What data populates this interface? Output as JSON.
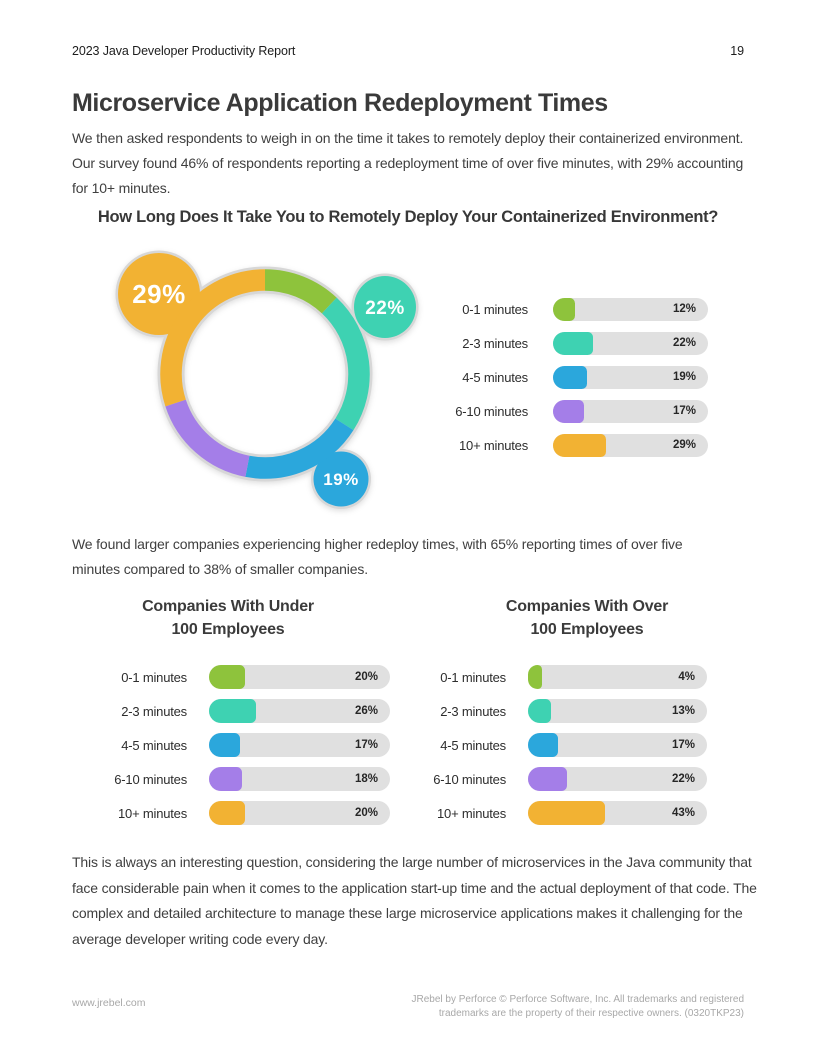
{
  "header": {
    "report_title": "2023 Java Developer Productivity Report",
    "page_number": "19"
  },
  "article": {
    "title": "Microservice Application Redeployment Times",
    "intro": "We then asked respondents to weigh in on the time it takes to remotely deploy their containerized environment. Our survey found 46% of respondents reporting a redeployment time of over five minutes, with 29% accounting for 10+ minutes.",
    "mid_note": "We found larger companies experiencing higher redeploy times, with 65% reporting times of over five minutes compared to 38% of smaller companies.",
    "closing": "This is always an interesting question, considering the large number of microservices in the Java community that face considerable pain when it comes to the application start-up time and the actual deployment of that code. The complex and detailed architecture to manage these large microservice applications makes it challenging for the average developer writing code every day."
  },
  "colors": {
    "green": "#8EC33C",
    "teal": "#3ED2B2",
    "blue": "#2BA7DC",
    "purple": "#A47EE8",
    "yellow": "#F2B233",
    "track": "#E0E0E0",
    "outline": "#D7D7D7",
    "bubble_label": "#FFFFFF"
  },
  "series_order": [
    "green",
    "teal",
    "blue",
    "purple",
    "yellow"
  ],
  "chart_data": [
    {
      "id": "overall-redeploy-time",
      "type": "donut",
      "title": "How Long Does It Take You to Remotely Deploy Your Containerized Environment?",
      "categories": [
        "0-1 minutes",
        "2-3 minutes",
        "4-5 minutes",
        "6-10 minutes",
        "10+ minutes"
      ],
      "values": [
        12,
        22,
        19,
        17,
        29
      ],
      "value_labels": [
        "12%",
        "22%",
        "19%",
        "17%",
        "29%"
      ],
      "callouts": [
        {
          "label": "29%",
          "series": "10+ minutes",
          "color": "yellow"
        },
        {
          "label": "22%",
          "series": "2-3 minutes",
          "color": "teal"
        },
        {
          "label": "19%",
          "series": "4-5 minutes",
          "color": "blue"
        }
      ]
    },
    {
      "id": "under-100-employees",
      "type": "bar",
      "title": "Companies With Under 100 Employees",
      "title_lines": [
        "Companies With Under",
        "100 Employees"
      ],
      "categories": [
        "0-1 minutes",
        "2-3 minutes",
        "4-5 minutes",
        "6-10 minutes",
        "10+ minutes"
      ],
      "values": [
        20,
        26,
        17,
        18,
        20
      ],
      "value_labels": [
        "20%",
        "26%",
        "17%",
        "18%",
        "20%"
      ]
    },
    {
      "id": "over-100-employees",
      "type": "bar",
      "title": "Companies With Over 100 Employees",
      "title_lines": [
        "Companies With Over",
        "100 Employees"
      ],
      "categories": [
        "0-1 minutes",
        "2-3 minutes",
        "4-5 minutes",
        "6-10 minutes",
        "10+ minutes"
      ],
      "values": [
        4,
        13,
        17,
        22,
        43
      ],
      "value_labels": [
        "4%",
        "13%",
        "17%",
        "22%",
        "43%"
      ]
    }
  ],
  "footer": {
    "site_url": "www.jrebel.com",
    "legal_line1": "JRebel by Perforce © Perforce Software, Inc. All trademarks and registered",
    "legal_line2": "trademarks are the property of their respective owners. (0320TKP23)"
  }
}
